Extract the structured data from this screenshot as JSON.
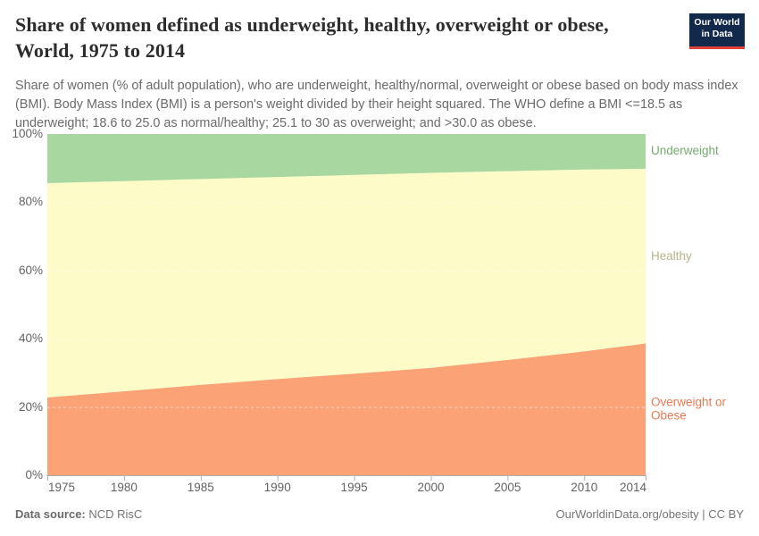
{
  "header": {
    "title_line1": "Share of women defined as underweight, healthy, overweight or obese,",
    "title_line2": "World, 1975 to 2014",
    "subtitle": "Share of women (% of adult population), who are underweight, healthy/normal, overweight or obese based on body mass index (BMI). Body Mass Index (BMI) is a person's weight divided by their height squared. The WHO define a BMI <=18.5 as underweight; 18.6 to 25.0 as normal/healthy; 25.1 to 30 as overweight; and >30.0 as obese.",
    "logo": {
      "line1": "Our World",
      "line2": "in Data",
      "bg_color": "#12294b",
      "accent_color": "#e0403a"
    }
  },
  "footer": {
    "datasource_label": "Data source:",
    "datasource_value": "NCD RisC",
    "credit": "OurWorldinData.org/obesity | CC BY"
  },
  "chart_data": {
    "type": "area",
    "stacked": true,
    "title": "Share of women defined as underweight, healthy, overweight or obese, World, 1975 to 2014",
    "xlabel": "",
    "ylabel": "",
    "xlim": [
      1975,
      2014
    ],
    "ylim": [
      0,
      100
    ],
    "x": [
      1975,
      1980,
      1985,
      1990,
      1995,
      2000,
      2005,
      2010,
      2014
    ],
    "xtick_labels": [
      "1975",
      "1980",
      "1985",
      "1990",
      "1995",
      "2000",
      "2005",
      "2010",
      "2014"
    ],
    "yticks": [
      0,
      20,
      40,
      60,
      80,
      100
    ],
    "ytick_labels": [
      "0%",
      "20%",
      "40%",
      "60%",
      "80%",
      "100%"
    ],
    "grid": "horizontal-dashed",
    "legend_position": "right",
    "series": [
      {
        "name": "Overweight or Obese",
        "color": "#fca277",
        "label_color": "#e87a53",
        "values": [
          22.8,
          24.6,
          26.5,
          28.2,
          29.8,
          31.5,
          33.8,
          36.3,
          38.6
        ]
      },
      {
        "name": "Healthy",
        "color": "#fdfcc8",
        "label_color": "#b7b488",
        "values": [
          62.8,
          61.6,
          60.3,
          59.2,
          58.2,
          57.1,
          55.3,
          53.3,
          51.2
        ]
      },
      {
        "name": "Underweight",
        "color": "#a8d8a0",
        "label_color": "#74ac6f",
        "values": [
          14.4,
          13.8,
          13.2,
          12.6,
          12.0,
          11.4,
          10.9,
          10.4,
          10.2
        ]
      }
    ]
  }
}
